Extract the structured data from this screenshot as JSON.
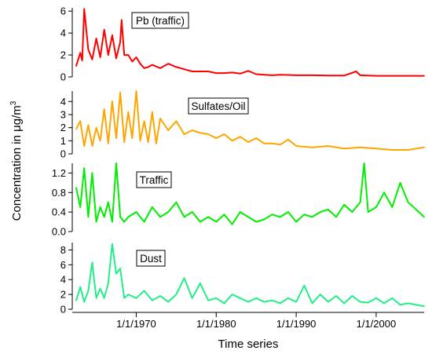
{
  "chart_data": {
    "type": "line",
    "xlabel": "Time series",
    "ylabel": "Concentration in μg/m³",
    "ylabel_main": "Concentration in μg/m",
    "ylabel_sup": "3",
    "x_range": [
      "1962-01-01",
      "2005-12-31"
    ],
    "x_ticks": [
      {
        "value": "1970-01-01",
        "label": "1/1/1970"
      },
      {
        "value": "1980-01-01",
        "label": "1/1/1980"
      },
      {
        "value": "1990-01-01",
        "label": "1/1/1990"
      },
      {
        "value": "2000-01-01",
        "label": "1/1/2000"
      }
    ],
    "panels": [
      {
        "name": "Pb (traffic)",
        "color": "#ff0000",
        "ylim": [
          0,
          6.3
        ],
        "y_ticks": [
          "0",
          "2",
          "4",
          "6"
        ],
        "y_tick_values": [
          0,
          2,
          4,
          6
        ],
        "x": [
          "1962-07-01",
          "1963-01-01",
          "1963-04-01",
          "1963-07-01",
          "1964-01-01",
          "1964-07-01",
          "1965-01-01",
          "1965-07-01",
          "1966-01-01",
          "1966-07-01",
          "1967-01-01",
          "1967-07-01",
          "1968-01-01",
          "1968-03-01",
          "1968-07-01",
          "1969-01-01",
          "1969-07-01",
          "1970-01-01",
          "1970-07-01",
          "1971-01-01",
          "1971-07-01",
          "1972-01-01",
          "1973-01-01",
          "1974-01-01",
          "1975-01-01",
          "1976-01-01",
          "1977-01-01",
          "1978-01-01",
          "1979-01-01",
          "1980-01-01",
          "1981-01-01",
          "1982-01-01",
          "1983-01-01",
          "1984-01-01",
          "1985-01-01",
          "1986-01-01",
          "1987-01-01",
          "1988-01-01",
          "1989-01-01",
          "1990-01-01",
          "1992-01-01",
          "1994-01-01",
          "1996-01-01",
          "1997-07-01",
          "1998-01-01",
          "2000-01-01",
          "2002-01-01",
          "2004-01-01",
          "2005-12-31"
        ],
        "values": [
          1.0,
          2.2,
          1.5,
          6.2,
          2.5,
          1.6,
          3.5,
          1.8,
          4.3,
          2.0,
          3.8,
          1.7,
          3.2,
          5.2,
          2.0,
          2.0,
          1.4,
          1.8,
          1.2,
          0.8,
          0.9,
          1.1,
          0.8,
          1.2,
          0.9,
          0.7,
          0.5,
          0.5,
          0.5,
          0.35,
          0.35,
          0.4,
          0.3,
          0.55,
          0.25,
          0.2,
          0.15,
          0.2,
          0.18,
          0.15,
          0.15,
          0.12,
          0.12,
          0.5,
          0.15,
          0.1,
          0.1,
          0.1,
          0.1
        ]
      },
      {
        "name": "Sulfates/Oil",
        "color": "#ffa500",
        "ylim": [
          0,
          4.8
        ],
        "y_ticks": [
          "0",
          "1",
          "2",
          "3",
          "4"
        ],
        "y_tick_values": [
          0,
          1,
          2,
          3,
          4
        ],
        "x": [
          "1962-07-01",
          "1963-01-01",
          "1963-07-01",
          "1964-01-01",
          "1964-07-01",
          "1965-01-01",
          "1965-07-01",
          "1966-01-01",
          "1966-07-01",
          "1967-01-01",
          "1967-07-01",
          "1968-01-01",
          "1968-07-01",
          "1969-01-01",
          "1969-07-01",
          "1970-01-01",
          "1970-07-01",
          "1971-01-01",
          "1971-07-01",
          "1972-01-01",
          "1972-07-01",
          "1973-01-01",
          "1974-01-01",
          "1975-01-01",
          "1976-01-01",
          "1977-01-01",
          "1978-01-01",
          "1979-01-01",
          "1980-01-01",
          "1981-01-01",
          "1982-01-01",
          "1983-01-01",
          "1984-01-01",
          "1985-01-01",
          "1986-01-01",
          "1987-01-01",
          "1988-01-01",
          "1989-01-01",
          "1990-01-01",
          "1992-01-01",
          "1994-01-01",
          "1996-01-01",
          "1998-01-01",
          "2000-01-01",
          "2002-01-01",
          "2004-01-01",
          "2005-12-31"
        ],
        "values": [
          1.9,
          2.5,
          0.6,
          2.2,
          0.6,
          2.0,
          1.0,
          3.4,
          0.8,
          4.0,
          1.2,
          4.7,
          0.9,
          3.2,
          1.2,
          4.8,
          1.0,
          2.5,
          0.9,
          3.2,
          0.8,
          2.7,
          1.8,
          2.5,
          1.5,
          1.8,
          1.6,
          1.5,
          1.2,
          1.5,
          1.0,
          1.3,
          0.9,
          1.2,
          0.8,
          0.8,
          0.7,
          1.1,
          0.6,
          0.5,
          0.6,
          0.4,
          0.5,
          0.4,
          0.3,
          0.3,
          0.5
        ]
      },
      {
        "name": "Traffic",
        "color": "#00ee00",
        "ylim": [
          0,
          1.4
        ],
        "y_ticks": [
          "0.0",
          "0.4",
          "0.8",
          "1.2"
        ],
        "y_tick_values": [
          0,
          0.4,
          0.8,
          1.2
        ],
        "x": [
          "1962-07-01",
          "1963-01-01",
          "1963-07-01",
          "1964-01-01",
          "1964-07-01",
          "1965-01-01",
          "1965-07-01",
          "1966-01-01",
          "1966-07-01",
          "1967-01-01",
          "1967-07-01",
          "1968-01-01",
          "1968-07-01",
          "1969-01-01",
          "1970-01-01",
          "1971-01-01",
          "1972-01-01",
          "1973-01-01",
          "1974-01-01",
          "1975-01-01",
          "1976-01-01",
          "1977-01-01",
          "1978-01-01",
          "1979-01-01",
          "1980-01-01",
          "1981-01-01",
          "1982-01-01",
          "1983-01-01",
          "1984-01-01",
          "1985-01-01",
          "1986-01-01",
          "1987-01-01",
          "1988-01-01",
          "1989-01-01",
          "1990-01-01",
          "1991-01-01",
          "1992-01-01",
          "1993-01-01",
          "1994-01-01",
          "1995-01-01",
          "1996-01-01",
          "1997-01-01",
          "1998-01-01",
          "1998-07-01",
          "1999-01-01",
          "2000-01-01",
          "2001-01-01",
          "2002-01-01",
          "2003-01-01",
          "2004-01-01",
          "2005-12-31"
        ],
        "values": [
          0.9,
          0.5,
          1.3,
          0.3,
          1.2,
          0.2,
          0.5,
          0.3,
          0.6,
          0.2,
          1.4,
          0.3,
          0.2,
          0.3,
          0.4,
          0.2,
          0.5,
          0.3,
          0.4,
          0.6,
          0.3,
          0.4,
          0.2,
          0.3,
          0.2,
          0.35,
          0.15,
          0.4,
          0.3,
          0.2,
          0.25,
          0.35,
          0.3,
          0.4,
          0.2,
          0.35,
          0.3,
          0.4,
          0.45,
          0.3,
          0.55,
          0.4,
          0.6,
          1.4,
          0.4,
          0.5,
          0.8,
          0.5,
          1.0,
          0.6,
          0.3
        ]
      },
      {
        "name": "Dust",
        "color": "#22ee88",
        "ylim": [
          0,
          9
        ],
        "y_ticks": [
          "0",
          "2",
          "4",
          "6",
          "8"
        ],
        "y_tick_values": [
          0,
          2,
          4,
          6,
          8
        ],
        "x": [
          "1962-07-01",
          "1963-01-01",
          "1963-07-01",
          "1964-01-01",
          "1964-07-01",
          "1965-01-01",
          "1965-07-01",
          "1966-01-01",
          "1966-07-01",
          "1967-01-01",
          "1967-07-01",
          "1968-01-01",
          "1968-07-01",
          "1969-01-01",
          "1970-01-01",
          "1971-01-01",
          "1972-01-01",
          "1973-01-01",
          "1974-01-01",
          "1975-01-01",
          "1976-01-01",
          "1977-01-01",
          "1978-01-01",
          "1979-01-01",
          "1980-01-01",
          "1981-01-01",
          "1982-01-01",
          "1983-01-01",
          "1984-01-01",
          "1985-01-01",
          "1986-01-01",
          "1987-01-01",
          "1988-01-01",
          "1989-01-01",
          "1990-01-01",
          "1991-01-01",
          "1992-01-01",
          "1993-01-01",
          "1994-01-01",
          "1995-01-01",
          "1996-01-01",
          "1997-01-01",
          "1998-01-01",
          "1999-01-01",
          "2000-01-01",
          "2001-01-01",
          "2002-01-01",
          "2003-01-01",
          "2004-01-01",
          "2005-12-31"
        ],
        "values": [
          1.2,
          3.0,
          1.0,
          2.5,
          6.3,
          1.5,
          2.8,
          1.5,
          3.5,
          8.8,
          4.8,
          5.5,
          1.5,
          2.0,
          1.5,
          2.5,
          1.2,
          1.8,
          1.0,
          2.0,
          4.2,
          1.5,
          3.5,
          1.2,
          1.5,
          0.8,
          2.0,
          1.5,
          1.0,
          1.5,
          1.0,
          1.2,
          0.8,
          1.5,
          1.0,
          3.2,
          0.8,
          2.0,
          1.0,
          1.8,
          0.8,
          1.8,
          1.0,
          0.9,
          1.5,
          0.8,
          1.5,
          0.6,
          0.8,
          0.4
        ]
      }
    ]
  }
}
